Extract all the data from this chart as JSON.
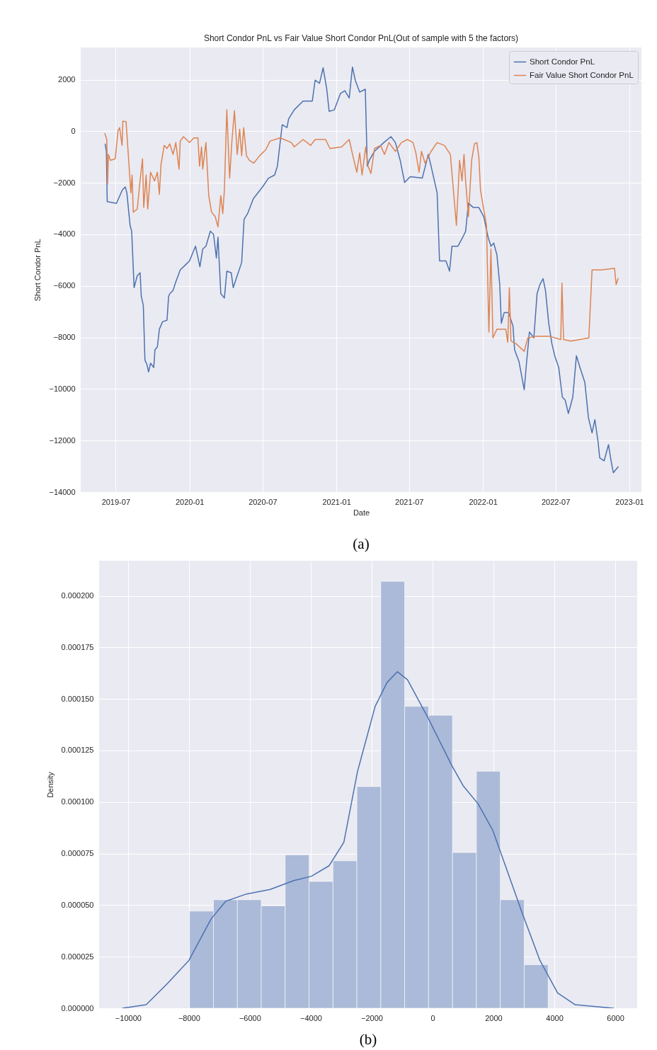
{
  "chart_data": [
    {
      "type": "line",
      "title": "Short Condor PnL vs Fair Value Short Condor PnL(Out of sample with 5 the factors)",
      "xlabel": "Date",
      "ylabel": "Short Condor PnL",
      "annotations": [
        "(a)"
      ],
      "legend": "top right",
      "grid": true,
      "xlim": [
        "2019-04-05",
        "2023-01-31"
      ],
      "xticks": [
        "2019-07",
        "2020-01",
        "2020-07",
        "2021-01",
        "2021-07",
        "2022-01",
        "2022-07",
        "2023-01"
      ],
      "ylim": [
        -14000,
        3250
      ],
      "yticks": [
        -14000,
        -12000,
        -10000,
        -8000,
        -6000,
        -4000,
        -2000,
        0,
        2000
      ],
      "series": [
        {
          "name": "Short Condor PnL",
          "color": "#4c72b0",
          "x": [
            "2019-06-05",
            "2019-06-08",
            "2019-06-10",
            "2019-07-03",
            "2019-07-18",
            "2019-07-25",
            "2019-07-29",
            "2019-08-06",
            "2019-08-10",
            "2019-08-16",
            "2019-08-24",
            "2019-08-31",
            "2019-09-03",
            "2019-09-08",
            "2019-09-12",
            "2019-09-17",
            "2019-09-21",
            "2019-09-26",
            "2019-10-04",
            "2019-10-07",
            "2019-10-13",
            "2019-10-18",
            "2019-10-26",
            "2019-11-06",
            "2019-11-10",
            "2019-11-13",
            "2019-11-21",
            "2019-11-28",
            "2019-12-09",
            "2019-12-21",
            "2020-01-01",
            "2020-01-16",
            "2020-01-27",
            "2020-02-03",
            "2020-02-11",
            "2020-02-22",
            "2020-03-01",
            "2020-03-08",
            "2020-03-12",
            "2020-03-19",
            "2020-03-28",
            "2020-04-03",
            "2020-04-14",
            "2020-04-19",
            "2020-04-29",
            "2020-05-10",
            "2020-05-16",
            "2020-05-25",
            "2020-06-08",
            "2020-07-01",
            "2020-07-16",
            "2020-07-31",
            "2020-08-07",
            "2020-08-19",
            "2020-08-31",
            "2020-09-04",
            "2020-09-18",
            "2020-10-10",
            "2020-11-02",
            "2020-11-09",
            "2020-11-20",
            "2020-11-29",
            "2020-12-08",
            "2020-12-14",
            "2020-12-27",
            "2021-01-11",
            "2021-01-22",
            "2021-02-02",
            "2021-02-10",
            "2021-02-17",
            "2021-02-28",
            "2021-03-14",
            "2021-03-19",
            "2021-03-24",
            "2021-04-06",
            "2021-04-29",
            "2021-05-17",
            "2021-05-28",
            "2021-06-09",
            "2021-06-20",
            "2021-07-04",
            "2021-08-03",
            "2021-08-18",
            "2021-08-25",
            "2021-09-09",
            "2021-09-15",
            "2021-10-01",
            "2021-10-10",
            "2021-10-16",
            "2021-10-31",
            "2021-11-12",
            "2021-11-19",
            "2021-11-26",
            "2021-12-08",
            "2021-12-22",
            "2022-01-03",
            "2022-01-14",
            "2022-01-21",
            "2022-01-28",
            "2022-02-05",
            "2022-02-12",
            "2022-02-16",
            "2022-02-23",
            "2022-03-06",
            "2022-03-17",
            "2022-03-21",
            "2022-04-01",
            "2022-04-14",
            "2022-04-20",
            "2022-04-27",
            "2022-05-08",
            "2022-05-16",
            "2022-05-23",
            "2022-05-31",
            "2022-06-06",
            "2022-06-14",
            "2022-06-22",
            "2022-06-29",
            "2022-07-09",
            "2022-07-18",
            "2022-07-25",
            "2022-08-02",
            "2022-08-13",
            "2022-08-22",
            "2022-08-31",
            "2022-09-12",
            "2022-09-21",
            "2022-09-30",
            "2022-10-07",
            "2022-10-15",
            "2022-10-19",
            "2022-10-30",
            "2022-11-10",
            "2022-11-17",
            "2022-11-22",
            "2022-12-04"
          ],
          "values": [
            -500,
            -800,
            -2730,
            -2800,
            -2270,
            -2160,
            -2390,
            -3650,
            -3880,
            -6070,
            -5600,
            -5490,
            -6410,
            -6760,
            -8880,
            -9050,
            -9340,
            -9000,
            -9170,
            -8480,
            -8370,
            -7680,
            -7390,
            -7330,
            -6410,
            -6300,
            -6180,
            -5840,
            -5380,
            -5200,
            -5030,
            -4460,
            -5260,
            -4570,
            -4460,
            -3880,
            -4000,
            -4920,
            -4110,
            -6300,
            -6470,
            -5430,
            -5490,
            -6070,
            -5600,
            -5090,
            -3420,
            -3190,
            -2620,
            -2160,
            -1820,
            -1700,
            -1360,
            250,
            140,
            480,
            830,
            1170,
            1170,
            1980,
            1860,
            2460,
            1630,
            770,
            830,
            1460,
            1570,
            1290,
            2490,
            1980,
            1520,
            1630,
            -1360,
            -1130,
            -780,
            -440,
            -210,
            -440,
            -1130,
            -1990,
            -1760,
            -1820,
            -900,
            -1360,
            -2390,
            -5030,
            -5030,
            -5430,
            -4460,
            -4460,
            -4110,
            -3880,
            -2790,
            -2960,
            -2960,
            -3310,
            -4110,
            -4460,
            -4340,
            -4800,
            -5950,
            -7450,
            -7040,
            -7040,
            -7560,
            -8480,
            -8940,
            -10030,
            -8940,
            -7790,
            -8020,
            -6300,
            -5950,
            -5720,
            -6180,
            -7450,
            -8250,
            -8710,
            -9170,
            -10320,
            -10430,
            -10950,
            -10320,
            -8710,
            -9170,
            -9740,
            -11120,
            -11700,
            -11190,
            -12050,
            -12670,
            -12790,
            -12160,
            -12840,
            -13250,
            -13020
          ]
        },
        {
          "name": "Fair Value Short Condor PnL",
          "color": "#dd8452",
          "x": [
            "2019-06-04",
            "2019-06-09",
            "2019-06-11",
            "2019-06-13",
            "2019-06-18",
            "2019-06-30",
            "2019-07-07",
            "2019-07-11",
            "2019-07-17",
            "2019-07-19",
            "2019-07-27",
            "2019-08-03",
            "2019-08-08",
            "2019-08-11",
            "2019-08-14",
            "2019-08-24",
            "2019-08-30",
            "2019-09-06",
            "2019-09-09",
            "2019-09-15",
            "2019-09-19",
            "2019-09-26",
            "2019-10-06",
            "2019-10-13",
            "2019-10-18",
            "2019-10-22",
            "2019-10-30",
            "2019-11-06",
            "2019-11-13",
            "2019-11-21",
            "2019-11-28",
            "2019-12-06",
            "2019-12-09",
            "2019-12-17",
            "2020-01-01",
            "2020-01-12",
            "2020-01-22",
            "2020-01-26",
            "2020-01-31",
            "2020-02-03",
            "2020-02-11",
            "2020-02-18",
            "2020-02-25",
            "2020-03-05",
            "2020-03-12",
            "2020-03-19",
            "2020-03-24",
            "2020-03-28",
            "2020-04-03",
            "2020-04-10",
            "2020-04-16",
            "2020-04-22",
            "2020-04-29",
            "2020-05-05",
            "2020-05-10",
            "2020-05-15",
            "2020-05-22",
            "2020-05-29",
            "2020-06-09",
            "2020-06-24",
            "2020-07-09",
            "2020-07-20",
            "2020-08-14",
            "2020-09-11",
            "2020-09-18",
            "2020-10-10",
            "2020-10-29",
            "2020-11-09",
            "2020-12-05",
            "2020-12-16",
            "2021-01-14",
            "2021-02-02",
            "2021-02-11",
            "2021-02-21",
            "2021-02-28",
            "2021-03-06",
            "2021-03-15",
            "2021-03-21",
            "2021-03-28",
            "2021-04-06",
            "2021-04-21",
            "2021-05-01",
            "2021-05-12",
            "2021-05-28",
            "2021-06-12",
            "2021-06-27",
            "2021-07-11",
            "2021-07-18",
            "2021-07-26",
            "2021-08-01",
            "2021-08-10",
            "2021-08-25",
            "2021-09-09",
            "2021-09-27",
            "2021-10-12",
            "2021-10-27",
            "2021-11-04",
            "2021-11-10",
            "2021-11-15",
            "2021-11-19",
            "2021-11-26",
            "2021-12-04",
            "2021-12-11",
            "2021-12-17",
            "2021-12-22",
            "2021-12-26",
            "2022-01-01",
            "2022-01-10",
            "2022-01-16",
            "2022-01-21",
            "2022-01-26",
            "2022-02-05",
            "2022-02-27",
            "2022-03-04",
            "2022-03-08",
            "2022-03-12",
            "2022-03-25",
            "2022-04-14",
            "2022-04-23",
            "2022-05-11",
            "2022-06-17",
            "2022-07-14",
            "2022-07-17",
            "2022-07-21",
            "2022-08-08",
            "2022-09-22",
            "2022-09-30",
            "2022-10-22",
            "2022-11-25",
            "2022-11-29",
            "2022-12-04"
          ],
          "values": [
            -90,
            -320,
            -2050,
            -900,
            -1130,
            -1070,
            20,
            140,
            -550,
            390,
            370,
            -1240,
            -2390,
            -1700,
            -3140,
            -3020,
            -2050,
            -1070,
            -2960,
            -1700,
            -3020,
            -1590,
            -1930,
            -1590,
            -2450,
            -1300,
            -550,
            -670,
            -490,
            -900,
            -440,
            -1470,
            -380,
            -210,
            -440,
            -260,
            -260,
            -1360,
            -610,
            -1470,
            -440,
            -2500,
            -3140,
            -3310,
            -3710,
            -2500,
            -3190,
            -2270,
            830,
            -1820,
            -320,
            800,
            -900,
            80,
            -950,
            140,
            -950,
            -1130,
            -1240,
            -950,
            -720,
            -380,
            -260,
            -440,
            -610,
            -320,
            -550,
            -320,
            -320,
            -670,
            -610,
            -320,
            -950,
            -1590,
            -840,
            -1700,
            -610,
            -1360,
            -1640,
            -670,
            -550,
            -900,
            -440,
            -780,
            -440,
            -320,
            -440,
            -840,
            -1590,
            -780,
            -1240,
            -780,
            -440,
            -550,
            -900,
            -3650,
            -1130,
            -1930,
            -900,
            -1930,
            -3310,
            -1130,
            -490,
            -440,
            -1010,
            -2270,
            -2850,
            -3650,
            -7790,
            -4570,
            -8020,
            -7680,
            -7680,
            -8190,
            -6070,
            -8140,
            -8250,
            -8540,
            -8020,
            -7960,
            -7960,
            -8080,
            -5890,
            -8080,
            -8140,
            -8020,
            -5380,
            -5380,
            -5320,
            -5950,
            -5720
          ]
        }
      ]
    },
    {
      "type": "histogram",
      "ylabel": "Density",
      "annotations": [
        "(b)"
      ],
      "grid": true,
      "xlim": [
        -10950,
        6720
      ],
      "xticks": [
        -10000,
        -8000,
        -6000,
        -4000,
        -2000,
        0,
        2000,
        4000,
        6000
      ],
      "ylim": [
        0,
        0.000217
      ],
      "yticks": [
        {
          "value": 0,
          "label": "0.000000"
        },
        {
          "value": 2.5e-05,
          "label": "0.000025"
        },
        {
          "value": 5e-05,
          "label": "0.000050"
        },
        {
          "value": 7.5e-05,
          "label": "0.000075"
        },
        {
          "value": 0.0001,
          "label": "0.000100"
        },
        {
          "value": 0.000125,
          "label": "0.000125"
        },
        {
          "value": 0.00015,
          "label": "0.000150"
        },
        {
          "value": 0.000175,
          "label": "0.000175"
        },
        {
          "value": 0.0002,
          "label": "0.000200"
        }
      ],
      "bins": [
        -7980,
        -7195,
        -6410,
        -5625,
        -4840,
        -4055,
        -3270,
        -2485,
        -1700,
        -915,
        -130,
        655,
        1440,
        2225,
        3010,
        3795
      ],
      "series": [
        {
          "type": "histogram",
          "color": "#abbad8",
          "values": [
            4.71e-05,
            5.26e-05,
            5.26e-05,
            4.97e-05,
            7.44e-05,
            6.15e-05,
            7.15e-05,
            0.0001075,
            0.000207,
            0.0001464,
            0.0001421,
            7.55e-05,
            0.0001149,
            5.26e-05,
            2.11e-05
          ]
        },
        {
          "type": "line",
          "color": "#4c72b0",
          "x": [
            -10180,
            -9405,
            -8727,
            -8000,
            -7273,
            -6789,
            -6110,
            -5335,
            -4560,
            -3979,
            -3397,
            -2913,
            -2463,
            -1884,
            -1497,
            -1159,
            -821,
            -145,
            628,
            1014,
            1497,
            1980,
            2463,
            2946,
            3526,
            4106,
            4685,
            5941
          ],
          "values": [
            0,
            1.7e-06,
            1.17e-05,
            2.32e-05,
            4.33e-05,
            5.19e-05,
            5.54e-05,
            5.76e-05,
            6.19e-05,
            6.4e-05,
            6.91e-05,
            8.05e-05,
            0.0001149,
            0.0001464,
            0.0001579,
            0.0001632,
            0.0001593,
            0.0001407,
            0.0001178,
            0.0001077,
            9.91e-05,
            8.62e-05,
            6.62e-05,
            4.61e-05,
            2.32e-05,
            7.4e-06,
            1.7e-06,
            0
          ]
        }
      ]
    }
  ]
}
